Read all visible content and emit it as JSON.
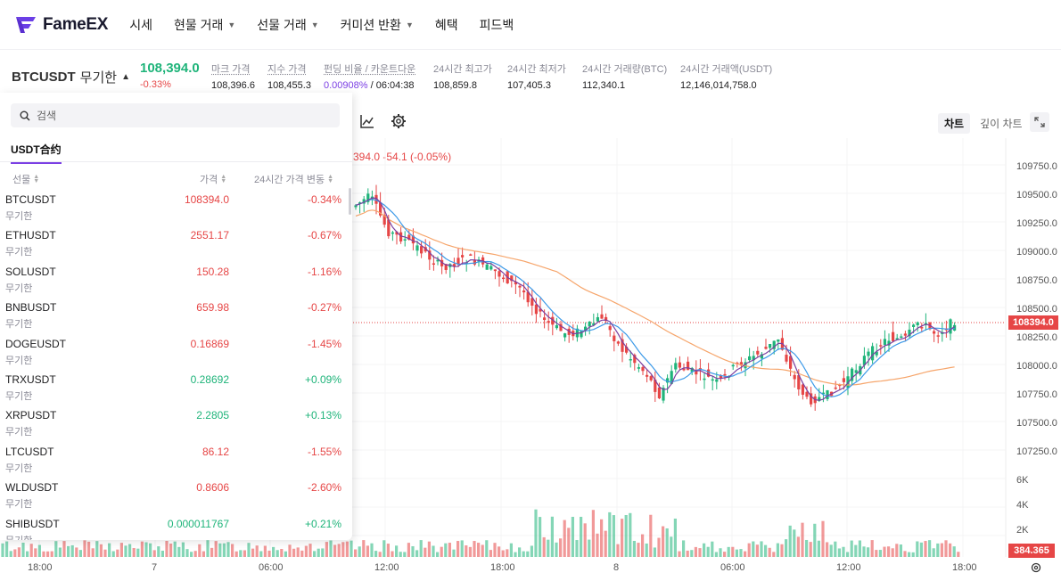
{
  "brand": {
    "name": "FameEX",
    "logo_color": "#6b3fe6"
  },
  "nav": {
    "items": [
      {
        "label": "시세",
        "dropdown": false
      },
      {
        "label": "현물 거래",
        "dropdown": true
      },
      {
        "label": "선물 거래",
        "dropdown": true
      },
      {
        "label": "커미션 반환",
        "dropdown": true
      },
      {
        "label": "혜택",
        "dropdown": false
      },
      {
        "label": "피드백",
        "dropdown": false
      }
    ]
  },
  "ticker": {
    "symbol": "BTCUSDT",
    "mode": "무기한",
    "last_price": "108,394.0",
    "change_pct": "-0.33%",
    "stats": [
      {
        "label": "마크 가격",
        "value": "108,396.6",
        "underline": true
      },
      {
        "label": "지수 가격",
        "value": "108,455.3",
        "underline": true
      },
      {
        "label": "펀딩 비율 / 카운트다운",
        "value_purple": "0.00908%",
        "value": " / 06:04:38",
        "underline": true
      },
      {
        "label": "24시간 최고가",
        "value": "108,859.8",
        "underline": false
      },
      {
        "label": "24시간 최저가",
        "value": "107,405.3",
        "underline": false
      },
      {
        "label": "24시간 거래량(BTC)",
        "value": "112,340.1",
        "underline": false
      },
      {
        "label": "24시간 거래액(USDT)",
        "value": "12,146,014,758.0",
        "underline": false
      }
    ]
  },
  "chart_tabs": {
    "chart": "차트",
    "depth": "깊이 차트"
  },
  "legend": {
    "text": "394.0  -54.1 (-0.05%)"
  },
  "panel": {
    "search_placeholder": "검색",
    "tab": "USDT合约",
    "headers": {
      "symbol": "선물",
      "price": "가격",
      "change": "24시간 가격 변동"
    },
    "rows": [
      {
        "symbol": "BTCUSDT",
        "sub": "무기한",
        "price": "108394.0",
        "price_dir": "down",
        "change": "-0.34%",
        "change_dir": "down"
      },
      {
        "symbol": "ETHUSDT",
        "sub": "무기한",
        "price": "2551.17",
        "price_dir": "down",
        "change": "-0.67%",
        "change_dir": "down"
      },
      {
        "symbol": "SOLUSDT",
        "sub": "무기한",
        "price": "150.28",
        "price_dir": "down",
        "change": "-1.16%",
        "change_dir": "down"
      },
      {
        "symbol": "BNBUSDT",
        "sub": "무기한",
        "price": "659.98",
        "price_dir": "down",
        "change": "-0.27%",
        "change_dir": "down"
      },
      {
        "symbol": "DOGEUSDT",
        "sub": "무기한",
        "price": "0.16869",
        "price_dir": "down",
        "change": "-1.45%",
        "change_dir": "down"
      },
      {
        "symbol": "TRXUSDT",
        "sub": "무기한",
        "price": "0.28692",
        "price_dir": "up",
        "change": "+0.09%",
        "change_dir": "up"
      },
      {
        "symbol": "XRPUSDT",
        "sub": "무기한",
        "price": "2.2805",
        "price_dir": "up",
        "change": "+0.13%",
        "change_dir": "up"
      },
      {
        "symbol": "LTCUSDT",
        "sub": "무기한",
        "price": "86.12",
        "price_dir": "down",
        "change": "-1.55%",
        "change_dir": "down"
      },
      {
        "symbol": "WLDUSDT",
        "sub": "무기한",
        "price": "0.8606",
        "price_dir": "down",
        "change": "-2.60%",
        "change_dir": "down"
      },
      {
        "symbol": "SHIBUSDT",
        "sub": "무기한",
        "price": "0.000011767",
        "price_dir": "up",
        "change": "+0.21%",
        "change_dir": "up"
      }
    ]
  },
  "price_axis": [
    "109750.0",
    "109500.0",
    "109250.0",
    "109000.0",
    "108750.0",
    "108500.0",
    "108250.0",
    "108000.0",
    "107750.0",
    "107500.0",
    "107250.0"
  ],
  "volume_axis": [
    "6K",
    "4K",
    "2K"
  ],
  "time_axis": [
    "18:00",
    "7",
    "06:00",
    "12:00",
    "18:00",
    "8",
    "06:00",
    "12:00",
    "18:00"
  ],
  "current_price_tag": "108394.0",
  "current_volume_tag": "384.365",
  "colors": {
    "up": "#1fb47a",
    "down": "#e64646",
    "ma_fast": "#3d9ae8",
    "ma_mid": "#7b3fa0",
    "ma_slow": "#f6a56b",
    "accent": "#7b3fe4"
  }
}
